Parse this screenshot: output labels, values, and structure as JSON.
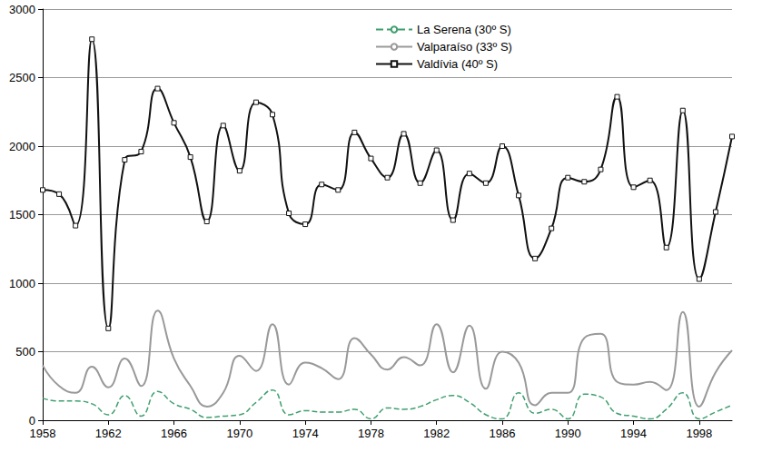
{
  "chart_data": {
    "type": "line",
    "x": [
      1958,
      1959,
      1960,
      1961,
      1962,
      1963,
      1964,
      1965,
      1966,
      1967,
      1968,
      1969,
      1970,
      1971,
      1972,
      1973,
      1974,
      1975,
      1976,
      1977,
      1978,
      1979,
      1980,
      1981,
      1982,
      1983,
      1984,
      1985,
      1986,
      1987,
      1988,
      1989,
      1990,
      1991,
      1992,
      1993,
      1994,
      1995,
      1996,
      1997,
      1998,
      1999,
      2000
    ],
    "series": [
      {
        "name": "La Serena (30º S)",
        "color": "#3f9f6f",
        "line_style": "dashed",
        "marker": "none",
        "values": [
          160,
          140,
          140,
          120,
          40,
          180,
          30,
          210,
          120,
          80,
          20,
          30,
          40,
          130,
          220,
          40,
          70,
          60,
          60,
          80,
          10,
          90,
          80,
          100,
          150,
          180,
          130,
          40,
          10,
          200,
          50,
          80,
          10,
          190,
          170,
          50,
          30,
          10,
          80,
          200,
          10,
          60,
          110
        ]
      },
      {
        "name": "Valparaíso (33º S)",
        "color": "#999999",
        "line_style": "solid",
        "marker": "none",
        "values": [
          400,
          250,
          200,
          390,
          240,
          450,
          250,
          800,
          450,
          250,
          100,
          200,
          470,
          360,
          700,
          260,
          420,
          380,
          300,
          600,
          480,
          370,
          460,
          400,
          700,
          350,
          690,
          230,
          500,
          420,
          110,
          200,
          200,
          600,
          630,
          280,
          260,
          280,
          220,
          790,
          100,
          350,
          510
        ]
      },
      {
        "name": "Valdívia (40º S)",
        "color": "#111111",
        "line_style": "solid",
        "marker": "square",
        "values": [
          1680,
          1650,
          1420,
          2780,
          670,
          1900,
          1960,
          2420,
          2170,
          1920,
          1450,
          2150,
          1820,
          2320,
          2230,
          1510,
          1430,
          1720,
          1680,
          2100,
          1910,
          1770,
          2090,
          1730,
          1970,
          1460,
          1800,
          1730,
          2000,
          1640,
          1180,
          1400,
          1770,
          1740,
          1830,
          2360,
          1700,
          1750,
          1260,
          2260,
          1030,
          1520,
          2070
        ]
      }
    ],
    "xlim": [
      1958,
      2000
    ],
    "xticks": [
      1958,
      1962,
      1966,
      1970,
      1974,
      1978,
      1982,
      1986,
      1990,
      1994,
      1998
    ],
    "ylim": [
      0,
      3000
    ],
    "yticks": [
      0,
      500,
      1000,
      1500,
      2000,
      2500,
      3000
    ],
    "grid": true,
    "legend": "upper right"
  }
}
